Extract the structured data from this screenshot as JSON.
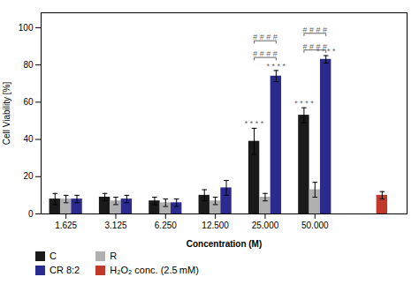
{
  "chart_data": {
    "type": "bar",
    "xlabel": "Concentration (M)",
    "ylabel": "Cell Viability [%]",
    "categories": [
      "1.625",
      "3.125",
      "6.250",
      "12.500",
      "25.000",
      "50.000",
      null
    ],
    "series": [
      {
        "name": "C",
        "color": "#1a1a1a",
        "values": [
          8,
          9,
          7,
          10,
          39,
          53,
          null
        ],
        "errors": [
          3,
          2,
          2,
          3,
          7,
          4,
          null
        ]
      },
      {
        "name": "R",
        "color": "#b0b0b0",
        "values": [
          8,
          7,
          6,
          7,
          9,
          13,
          null
        ],
        "errors": [
          2,
          2,
          2,
          2,
          2,
          4,
          null
        ]
      },
      {
        "name": "CR 8:2",
        "color": "#2b2b8f",
        "values": [
          8,
          8,
          6,
          14,
          74,
          83,
          null
        ],
        "errors": [
          2,
          2,
          2,
          4,
          3,
          2,
          null
        ]
      },
      {
        "name": "H₂O₂ conc. (2.5 mM)",
        "color": "#c0392b",
        "values": [
          null,
          null,
          null,
          null,
          null,
          null,
          10
        ],
        "errors": [
          null,
          null,
          null,
          null,
          null,
          null,
          2
        ]
      }
    ],
    "ylim": [
      0,
      108
    ],
    "yticks": [
      0,
      20,
      40,
      60,
      80,
      100
    ],
    "grid": false,
    "legend": "bottom",
    "annotations": [
      {
        "text": "* * * *",
        "category": "25.000",
        "series": "C",
        "y": 47,
        "color": "#666666"
      },
      {
        "text": "* * * *",
        "category": "50.000",
        "series": "C",
        "y": 58,
        "color": "#666666"
      },
      {
        "text": "* * * *",
        "category": "25.000",
        "series": "CR 8:2",
        "y": 78,
        "color": "#666666"
      },
      {
        "text": "* * * *",
        "category": "50.000",
        "series": "CR 8:2",
        "y": 86,
        "color": "#666666"
      },
      {
        "text": "# # # #",
        "category": "25.000",
        "from": "C",
        "to": "CR 8:2",
        "y": 84,
        "color": "#666666"
      },
      {
        "text": "# # # #",
        "category": "25.000",
        "from": "C",
        "to": "CR 8:2",
        "y": 93,
        "color": "#666666"
      },
      {
        "text": "# # # #",
        "category": "50.000",
        "from": "C",
        "to": "CR 8:2",
        "y": 88,
        "color": "#666666"
      },
      {
        "text": "# # # #",
        "category": "50.000",
        "from": "C",
        "to": "CR 8:2",
        "y": 97,
        "color": "#666666"
      }
    ]
  }
}
